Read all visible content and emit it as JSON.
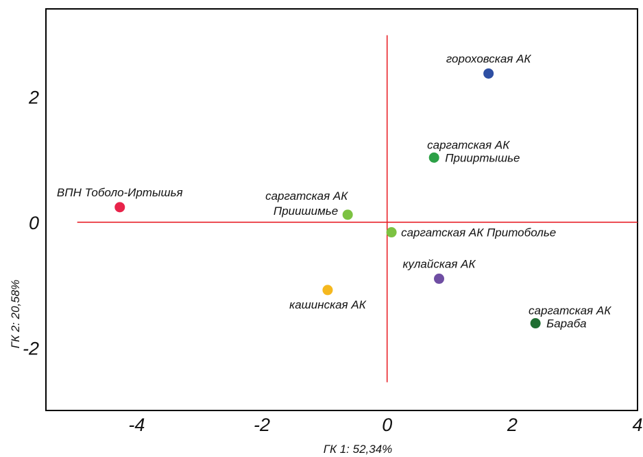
{
  "chart_data": {
    "type": "scatter",
    "xlabel": "ГК 1: 52,34%",
    "ylabel": "ГК 2: 20,58%",
    "xlim": [
      -5.45,
      4.0
    ],
    "ylim": [
      -3.0,
      3.4
    ],
    "xticks": [
      -4,
      -2,
      0,
      2,
      4
    ],
    "yticks": [
      2,
      0,
      -2
    ],
    "tick_labels_x": [
      "-4",
      "-2",
      "0",
      "2",
      "4"
    ],
    "tick_labels_y": [
      "2",
      "0",
      "-2"
    ],
    "reference_lines": {
      "color": "#e8232a",
      "horizontal": {
        "y": 0,
        "x_from": -4.95,
        "x_to": 4.0
      },
      "vertical": {
        "x": 0,
        "y_from": -2.55,
        "y_to": 2.98
      }
    },
    "points": [
      {
        "x": 1.62,
        "y": 2.37,
        "color": "#2e4fa3",
        "label": [
          "гороховская АК"
        ],
        "label_pos": "above"
      },
      {
        "x": 0.75,
        "y": 1.03,
        "color": "#2ca046",
        "label": [
          "саргатская АК",
          "Прииртышье"
        ],
        "label_pos": "split"
      },
      {
        "x": -4.27,
        "y": 0.24,
        "color": "#e8234a",
        "label": [
          "ВПН Тоболо-Иртышья"
        ],
        "label_pos": "above"
      },
      {
        "x": -0.63,
        "y": 0.12,
        "color": "#7cc242",
        "label": [
          "саргатская АК",
          "Приишимье"
        ],
        "label_pos": "upper-left"
      },
      {
        "x": 0.07,
        "y": -0.16,
        "color": "#7cc242",
        "label": [
          "саргатская АК Притоболье"
        ],
        "label_pos": "right"
      },
      {
        "x": 0.83,
        "y": -0.9,
        "color": "#6f4ea3",
        "label": [
          "кулайская АК"
        ],
        "label_pos": "above"
      },
      {
        "x": -0.95,
        "y": -1.08,
        "color": "#f5b81e",
        "label": [
          "кашинская АК"
        ],
        "label_pos": "below"
      },
      {
        "x": 2.37,
        "y": -1.61,
        "color": "#1f6e32",
        "label": [
          "саргатская АК",
          "Бараба"
        ],
        "label_pos": "split"
      }
    ]
  }
}
